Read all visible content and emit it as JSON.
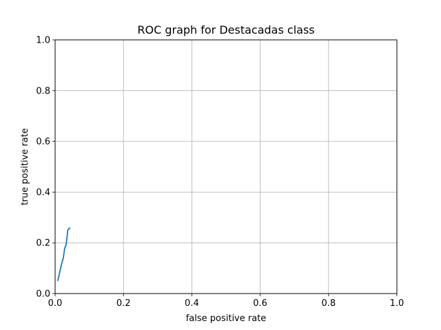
{
  "chart_data": {
    "type": "line",
    "title": "ROC graph for Destacadas class",
    "xlabel": "false positive rate",
    "ylabel": "true positive rate",
    "xlim": [
      0.0,
      1.0
    ],
    "ylim": [
      0.0,
      1.0
    ],
    "xticks": [
      "0.0",
      "0.2",
      "0.4",
      "0.6",
      "0.8",
      "1.0"
    ],
    "yticks": [
      "0.0",
      "0.2",
      "0.4",
      "0.6",
      "0.8",
      "1.0"
    ],
    "grid": true,
    "series": [
      {
        "color": "#1f77b4",
        "x": [
          0.008,
          0.012,
          0.016,
          0.02,
          0.024,
          0.026,
          0.028,
          0.031,
          0.033,
          0.035,
          0.037,
          0.04,
          0.043
        ],
        "y": [
          0.052,
          0.075,
          0.1,
          0.122,
          0.14,
          0.16,
          0.178,
          0.188,
          0.2,
          0.225,
          0.25,
          0.255,
          0.258
        ]
      }
    ]
  }
}
